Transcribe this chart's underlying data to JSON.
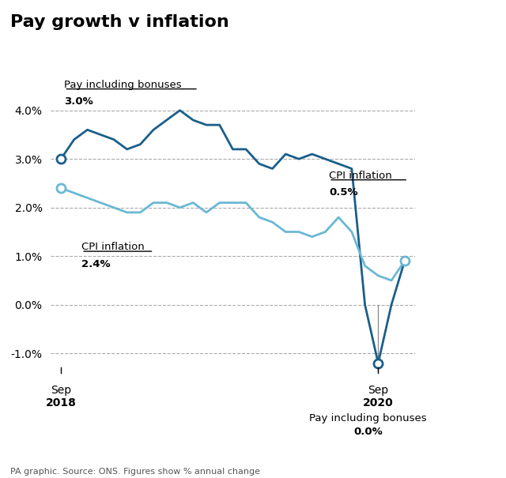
{
  "title": "Pay growth v inflation",
  "subtitle": "PA graphic. Source: ONS. Figures show % annual change",
  "pay_color": "#1a5f8a",
  "cpi_color": "#6bb8d4",
  "pay_data": [
    3.0,
    3.4,
    3.6,
    3.5,
    3.4,
    3.2,
    3.3,
    3.6,
    3.8,
    4.0,
    3.8,
    3.7,
    3.7,
    3.2,
    3.2,
    2.9,
    2.8,
    3.1,
    3.0,
    3.1,
    3.0,
    2.9,
    2.8,
    0.0,
    -1.2,
    0.0,
    0.9
  ],
  "cpi_data": [
    2.4,
    2.3,
    2.2,
    2.1,
    2.0,
    1.9,
    1.9,
    2.1,
    2.1,
    2.0,
    2.1,
    1.9,
    2.1,
    2.1,
    2.1,
    1.8,
    1.7,
    1.5,
    1.5,
    1.4,
    1.5,
    1.8,
    1.5,
    0.8,
    0.6,
    0.5,
    0.9
  ],
  "n_points": 27,
  "ylim": [
    -1.4,
    4.5
  ],
  "yticks": [
    -1.0,
    0.0,
    1.0,
    2.0,
    3.0,
    4.0
  ],
  "pay_color_line": "#1a5f8a",
  "cpi_color_line": "#6ab8d4"
}
